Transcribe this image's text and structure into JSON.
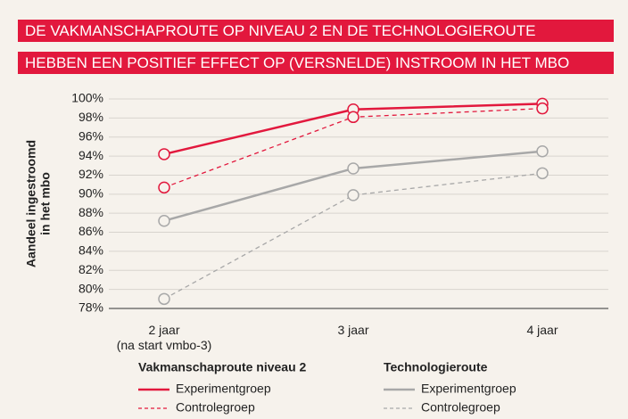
{
  "chart_data": {
    "type": "line",
    "title": [
      "DE VAKMANSCHAPROUTE OP NIVEAU 2 EN DE TECHNOLOGIEROUTE",
      "HEBBEN EEN POSITIEF EFFECT OP (VERSNELDE) INSTROOM IN HET MBO"
    ],
    "y_label": [
      "Aandeel ingestroomd",
      "in het mbo"
    ],
    "categories": [
      "2 jaar\n(na start vmbo-3)",
      "3 jaar",
      "4 jaar"
    ],
    "ylim": [
      78,
      100
    ],
    "yticks": [
      {
        "value": 78,
        "label": "78%"
      },
      {
        "value": 80,
        "label": "80%"
      },
      {
        "value": 82,
        "label": "82%"
      },
      {
        "value": 84,
        "label": "84%"
      },
      {
        "value": 86,
        "label": "86%"
      },
      {
        "value": 88,
        "label": "88%"
      },
      {
        "value": 90,
        "label": "90%"
      },
      {
        "value": 92,
        "label": "92%"
      },
      {
        "value": 94,
        "label": "94%"
      },
      {
        "value": 96,
        "label": "96%"
      },
      {
        "value": 98,
        "label": "98%"
      },
      {
        "value": 100,
        "label": "100%"
      }
    ],
    "grid": true,
    "series": [
      {
        "group": "Vakmanschaproute niveau 2",
        "name": "Experimentgroep",
        "color": "#e2183d",
        "dashed": false,
        "values": [
          94.2,
          98.9,
          99.5
        ]
      },
      {
        "group": "Vakmanschaproute niveau 2",
        "name": "Controlegroep",
        "color": "#e2183d",
        "dashed": true,
        "values": [
          90.7,
          98.1,
          99.0
        ]
      },
      {
        "group": "Technologieroute",
        "name": "Experimentgroep",
        "color": "#a8a8a8",
        "dashed": false,
        "values": [
          87.2,
          92.7,
          94.5
        ]
      },
      {
        "group": "Technologieroute",
        "name": "Controlegroep",
        "color": "#a8a8a8",
        "dashed": true,
        "values": [
          79.0,
          89.9,
          92.2
        ]
      }
    ]
  }
}
